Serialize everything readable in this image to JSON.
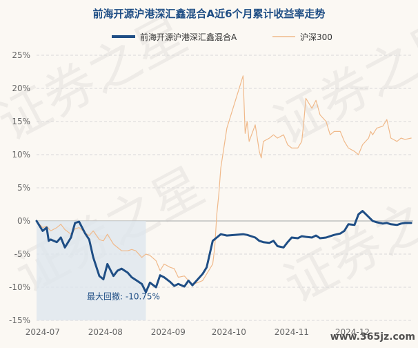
{
  "chart_data": {
    "type": "line",
    "title": "前海开源沪港深汇鑫混合A近6个月累计收益率走势",
    "y_tick_labels": [
      "25%",
      "20%",
      "15%",
      "10%",
      "5%",
      "0%",
      "-5%",
      "-10%",
      "-15%"
    ],
    "y_ticks": [
      25,
      20,
      15,
      10,
      5,
      0,
      -5,
      -10,
      -15
    ],
    "x_tick_labels": [
      "2024-07",
      "2024-08",
      "2024-09",
      "2024-10",
      "2024-11",
      "2024-12"
    ],
    "x_ticks": [
      "2024-07-01",
      "2024-08-01",
      "2024-09-01",
      "2024-10-01",
      "2024-11-01",
      "2024-12-01"
    ],
    "xlim": [
      "2024-06-28",
      "2024-12-31"
    ],
    "ylim": [
      -15,
      25
    ],
    "grid": true,
    "legend_position": "top-center",
    "series": [
      {
        "name": "前海开源沪港深汇鑫混合A",
        "color": "#1f4e85",
        "x": [
          "2024-06-28",
          "2024-07-01",
          "2024-07-03",
          "2024-07-04",
          "2024-07-05",
          "2024-07-08",
          "2024-07-10",
          "2024-07-12",
          "2024-07-15",
          "2024-07-17",
          "2024-07-19",
          "2024-07-22",
          "2024-07-24",
          "2024-07-26",
          "2024-07-29",
          "2024-07-31",
          "2024-08-02",
          "2024-08-05",
          "2024-08-07",
          "2024-08-09",
          "2024-08-12",
          "2024-08-14",
          "2024-08-16",
          "2024-08-19",
          "2024-08-21",
          "2024-08-23",
          "2024-08-26",
          "2024-08-28",
          "2024-08-30",
          "2024-09-02",
          "2024-09-04",
          "2024-09-06",
          "2024-09-09",
          "2024-09-11",
          "2024-09-13",
          "2024-09-18",
          "2024-09-20",
          "2024-09-23",
          "2024-09-25",
          "2024-09-27",
          "2024-09-30",
          "2024-10-08",
          "2024-10-10",
          "2024-10-14",
          "2024-10-16",
          "2024-10-18",
          "2024-10-21",
          "2024-10-23",
          "2024-10-25",
          "2024-10-28",
          "2024-10-30",
          "2024-11-01",
          "2024-11-04",
          "2024-11-06",
          "2024-11-08",
          "2024-11-11",
          "2024-11-13",
          "2024-11-15",
          "2024-11-18",
          "2024-11-20",
          "2024-11-22",
          "2024-11-25",
          "2024-11-27",
          "2024-11-29",
          "2024-12-02",
          "2024-12-04",
          "2024-12-06",
          "2024-12-09",
          "2024-12-11",
          "2024-12-13",
          "2024-12-16",
          "2024-12-18",
          "2024-12-20",
          "2024-12-23",
          "2024-12-25",
          "2024-12-27",
          "2024-12-30"
        ],
        "values": [
          0,
          -1.5,
          -1.0,
          -3.0,
          -2.8,
          -3.2,
          -2.5,
          -4.0,
          -2.5,
          -0.3,
          -0.1,
          -1.9,
          -2.8,
          -5.5,
          -8.3,
          -8.8,
          -6.5,
          -8.3,
          -7.5,
          -7.2,
          -7.8,
          -8.5,
          -8.9,
          -9.5,
          -10.75,
          -9.3,
          -10.0,
          -8.2,
          -8.5,
          -9.2,
          -9.8,
          -9.5,
          -9.9,
          -9.0,
          -9.7,
          -8.0,
          -7.0,
          -3.0,
          -2.5,
          -2.0,
          -2.2,
          -2.0,
          -2.1,
          -2.5,
          -3.0,
          -3.2,
          -3.3,
          -3.0,
          -3.8,
          -4.0,
          -3.2,
          -2.5,
          -2.6,
          -2.3,
          -2.4,
          -2.5,
          -2.2,
          -2.6,
          -2.5,
          -2.3,
          -2.1,
          -1.9,
          -1.5,
          -0.5,
          -0.6,
          1.0,
          1.5,
          0.6,
          0.0,
          -0.2,
          -0.4,
          -0.3,
          -0.5,
          -0.6,
          -0.4,
          -0.3,
          -0.3
        ]
      },
      {
        "name": "沪深300",
        "color": "#f0b98a",
        "x": [
          "2024-06-28",
          "2024-07-01",
          "2024-07-03",
          "2024-07-05",
          "2024-07-08",
          "2024-07-10",
          "2024-07-12",
          "2024-07-15",
          "2024-07-17",
          "2024-07-19",
          "2024-07-22",
          "2024-07-24",
          "2024-07-26",
          "2024-07-29",
          "2024-07-31",
          "2024-08-02",
          "2024-08-05",
          "2024-08-07",
          "2024-08-09",
          "2024-08-12",
          "2024-08-14",
          "2024-08-16",
          "2024-08-19",
          "2024-08-21",
          "2024-08-23",
          "2024-08-26",
          "2024-08-28",
          "2024-08-30",
          "2024-09-02",
          "2024-09-04",
          "2024-09-06",
          "2024-09-09",
          "2024-09-11",
          "2024-09-13",
          "2024-09-18",
          "2024-09-20",
          "2024-09-23",
          "2024-09-24",
          "2024-09-25",
          "2024-09-26",
          "2024-09-27",
          "2024-09-30",
          "2024-10-08",
          "2024-10-09",
          "2024-10-10",
          "2024-10-11",
          "2024-10-14",
          "2024-10-15",
          "2024-10-16",
          "2024-10-17",
          "2024-10-18",
          "2024-10-21",
          "2024-10-23",
          "2024-10-25",
          "2024-10-28",
          "2024-10-30",
          "2024-11-01",
          "2024-11-04",
          "2024-11-06",
          "2024-11-07",
          "2024-11-08",
          "2024-11-11",
          "2024-11-13",
          "2024-11-15",
          "2024-11-18",
          "2024-11-20",
          "2024-11-22",
          "2024-11-25",
          "2024-11-27",
          "2024-11-29",
          "2024-12-02",
          "2024-12-04",
          "2024-12-06",
          "2024-12-09",
          "2024-12-10",
          "2024-12-11",
          "2024-12-13",
          "2024-12-16",
          "2024-12-18",
          "2024-12-20",
          "2024-12-23",
          "2024-12-25",
          "2024-12-27",
          "2024-12-30"
        ],
        "values": [
          0,
          -1.0,
          -0.8,
          -1.5,
          -1.0,
          -0.5,
          -1.3,
          -2.0,
          -1.2,
          -1.0,
          -1.8,
          -2.2,
          -1.5,
          -2.8,
          -3.0,
          -2.0,
          -3.5,
          -4.0,
          -4.5,
          -4.5,
          -4.3,
          -4.5,
          -5.5,
          -5.0,
          -5.2,
          -6.0,
          -7.5,
          -6.5,
          -7.0,
          -7.2,
          -8.5,
          -8.3,
          -9.0,
          -9.6,
          -9.0,
          -8.0,
          -6.5,
          -4.0,
          1.0,
          4.0,
          8.0,
          14.0,
          21.9,
          13.2,
          15.0,
          12.0,
          14.5,
          12.5,
          10.5,
          9.5,
          12.0,
          12.5,
          13.0,
          12.5,
          13.0,
          11.5,
          11.0,
          11.0,
          12.0,
          15.0,
          18.5,
          17.0,
          18.2,
          16.0,
          15.0,
          13.0,
          13.5,
          13.5,
          12.0,
          11.0,
          10.5,
          10.0,
          11.5,
          12.5,
          13.5,
          13.0,
          14.0,
          14.3,
          15.3,
          12.5,
          12.0,
          12.5,
          12.3,
          12.5
        ]
      }
    ],
    "annotation": {
      "text": "最大回撤: -10.75%",
      "start": "2024-07-01",
      "end": "2024-08-21"
    },
    "watermark_text": "证券之星",
    "site_text": "www.365jz.com"
  }
}
